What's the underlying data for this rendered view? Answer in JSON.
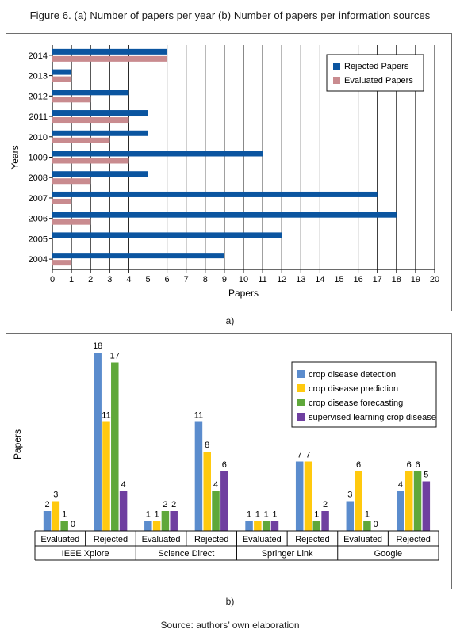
{
  "figure_title": "Figure 6. (a) Number of papers per year (b) Number of papers per information sources",
  "caption_a": "a)",
  "caption_b": "b)",
  "source": "Source: authors’ own elaboration",
  "colors": {
    "rejected": "#0b55a0",
    "evaluated": "#c98b8f",
    "detection": "#5b8ccd",
    "prediction": "#ffc90e",
    "forecasting": "#5fa83a",
    "supervised": "#6f3fa0"
  },
  "chart_data": [
    {
      "type": "bar",
      "orientation": "horizontal",
      "title": "",
      "xlabel": "Papers",
      "ylabel": "Years",
      "categories": [
        "2014",
        "2013",
        "2012",
        "2011",
        "2010",
        "1009",
        "2008",
        "2007",
        "2006",
        "2005",
        "2004"
      ],
      "series": [
        {
          "name": "Rejected Papers",
          "values": [
            6,
            1,
            4,
            5,
            5,
            11,
            5,
            17,
            18,
            12,
            9
          ]
        },
        {
          "name": "Evaluated Papers",
          "values": [
            6,
            1,
            2,
            4,
            3,
            4,
            2,
            1,
            2,
            0,
            1
          ]
        }
      ],
      "xlim": [
        0,
        20
      ],
      "xticks": [
        "0",
        "1",
        "2",
        "3",
        "4",
        "5",
        "6",
        "7",
        "8",
        "9",
        "10",
        "11",
        "12",
        "13",
        "14",
        "15",
        "16",
        "17",
        "18",
        "19",
        "20"
      ],
      "grid": "vertical",
      "legend": "top-right"
    },
    {
      "type": "bar",
      "title": "",
      "xlabel": "",
      "ylabel": "Papers",
      "groups": [
        "IEEE Xplore",
        "Science Direct",
        "Springer Link",
        "Google"
      ],
      "subgroups": [
        "Evaluated",
        "Rejected"
      ],
      "series": [
        {
          "name": "crop disease detection",
          "values": [
            2,
            18,
            1,
            11,
            1,
            7,
            3,
            4
          ]
        },
        {
          "name": "crop disease prediction",
          "values": [
            3,
            11,
            1,
            8,
            1,
            7,
            6,
            6
          ]
        },
        {
          "name": "crop disease forecasting",
          "values": [
            1,
            17,
            2,
            4,
            1,
            1,
            1,
            6
          ]
        },
        {
          "name": "supervised learning crop disease",
          "values": [
            0,
            4,
            2,
            6,
            1,
            2,
            0,
            5
          ]
        }
      ],
      "ylim": [
        0,
        18
      ],
      "grid": "none",
      "legend": "top-right"
    }
  ]
}
